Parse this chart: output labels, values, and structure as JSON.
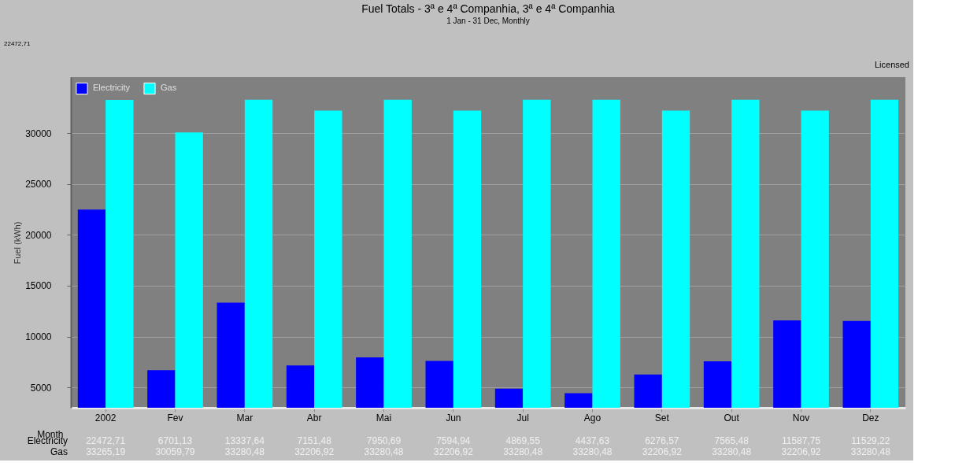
{
  "chart_data": {
    "type": "bar",
    "title": "Fuel Totals - 3ª e 4ª Companhia, 3ª e 4ª Companhia",
    "subtitle": "1 Jan - 31 Dec, Monthly",
    "xlabel": "Month",
    "ylabel": "Fuel (kWh)",
    "categories": [
      "2002",
      "Fev",
      "Mar",
      "Abr",
      "Mai",
      "Jun",
      "Jul",
      "Ago",
      "Set",
      "Out",
      "Nov",
      "Dez"
    ],
    "series": [
      {
        "name": "Electricity",
        "color": "#0000ff",
        "values": [
          22472.71,
          6701.13,
          13337.64,
          7151.48,
          7950.69,
          7594.94,
          4869.55,
          4437.63,
          6276.57,
          7565.48,
          11587.75,
          11529.22
        ],
        "value_labels": [
          "22472,71",
          "6701,13",
          "13337,64",
          "7151,48",
          "7950,69",
          "7594,94",
          "4869,55",
          "4437,63",
          "6276,57",
          "7565,48",
          "11587,75",
          "11529,22"
        ]
      },
      {
        "name": "Gas",
        "color": "#00ffff",
        "values": [
          33265.19,
          30059.79,
          33280.48,
          32206.92,
          33280.48,
          32206.92,
          33280.48,
          33280.48,
          32206.92,
          33280.48,
          32206.92,
          33280.48
        ],
        "value_labels": [
          "33265,19",
          "30059,79",
          "33280,48",
          "32206,92",
          "33280,48",
          "32206,92",
          "33280,48",
          "33280,48",
          "32206,92",
          "33280,48",
          "32206,92",
          "33280,48"
        ]
      }
    ],
    "ylim": [
      3000,
      35500
    ],
    "yticks": [
      5000,
      10000,
      15000,
      20000,
      25000,
      30000
    ],
    "grid": "y",
    "legend": "top left",
    "annotations": [
      "22472,71",
      "Licensed"
    ]
  }
}
